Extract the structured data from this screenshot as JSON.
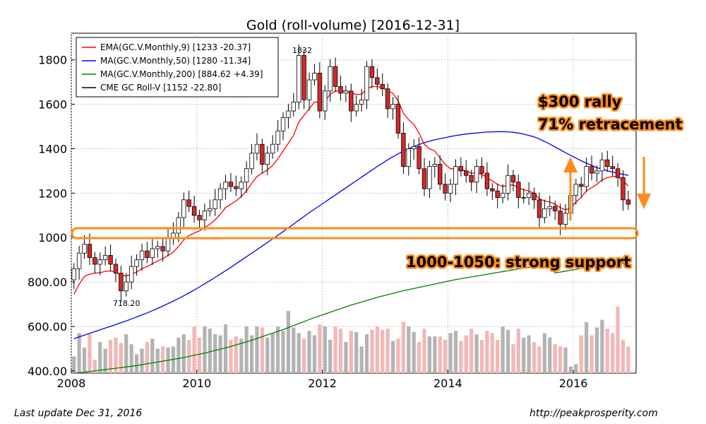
{
  "chart_data": {
    "type": "candlestick",
    "title": "Gold (roll-volume)  [2016-12-31]",
    "x_ticks": [
      "2008",
      "2010",
      "2012",
      "2014",
      "2016"
    ],
    "y_ticks": [
      "400.00",
      "600.00",
      "800.00",
      "1000",
      "1200",
      "1400",
      "1600",
      "1800"
    ],
    "x_range": [
      2008.0,
      2017.0
    ],
    "y_range": [
      390,
      1920
    ],
    "grid": true,
    "legend_position": "top-left",
    "legend": [
      {
        "label": "EMA(GC.V.Monthly,9) [1233 -20.37]",
        "color": "#ff0000"
      },
      {
        "label": "MA(GC.V.Monthly,50) [1280 -11.34]",
        "color": "#0000ff"
      },
      {
        "label": "MA(GC.V.Monthly,200) [884.62 +4.39]",
        "color": "#008000"
      },
      {
        "label": "CME GC Roll-V [1152 -22.80]",
        "color": "#000000"
      }
    ],
    "point_labels": {
      "high": "1832",
      "low": "718.20"
    },
    "price_closes": [
      860,
      930,
      970,
      910,
      880,
      900,
      920,
      880,
      840,
      760,
      800,
      870,
      900,
      940,
      910,
      950,
      960,
      940,
      1000,
      1020,
      1090,
      1170,
      1140,
      1100,
      1080,
      1120,
      1130,
      1170,
      1220,
      1250,
      1230,
      1220,
      1250,
      1310,
      1380,
      1420,
      1330,
      1380,
      1420,
      1480,
      1540,
      1570,
      1610,
      1820,
      1620,
      1710,
      1740,
      1570,
      1660,
      1770,
      1680,
      1650,
      1660,
      1570,
      1600,
      1620,
      1770,
      1720,
      1690,
      1670,
      1580,
      1600,
      1470,
      1320,
      1400,
      1410,
      1310,
      1220,
      1320,
      1330,
      1240,
      1200,
      1240,
      1320,
      1300,
      1280,
      1250,
      1320,
      1290,
      1220,
      1210,
      1180,
      1200,
      1280,
      1250,
      1180,
      1180,
      1200,
      1170,
      1090,
      1130,
      1140,
      1120,
      1060,
      1110,
      1190,
      1240,
      1230,
      1320,
      1290,
      1300,
      1350,
      1320,
      1310,
      1270,
      1170,
      1150
    ],
    "ema9": [
      745,
      790,
      825,
      835,
      840,
      842,
      848,
      850,
      845,
      830,
      828,
      835,
      845,
      860,
      870,
      882,
      895,
      905,
      920,
      935,
      960,
      990,
      1010,
      1020,
      1030,
      1045,
      1060,
      1080,
      1105,
      1135,
      1150,
      1165,
      1185,
      1210,
      1245,
      1275,
      1290,
      1305,
      1325,
      1355,
      1390,
      1425,
      1460,
      1520,
      1550,
      1580,
      1610,
      1610,
      1615,
      1645,
      1660,
      1660,
      1660,
      1650,
      1645,
      1645,
      1670,
      1680,
      1680,
      1675,
      1660,
      1650,
      1615,
      1560,
      1530,
      1510,
      1470,
      1420,
      1400,
      1390,
      1360,
      1330,
      1310,
      1310,
      1305,
      1300,
      1290,
      1290,
      1285,
      1270,
      1255,
      1240,
      1230,
      1235,
      1237,
      1225,
      1215,
      1210,
      1200,
      1175,
      1165,
      1160,
      1150,
      1135,
      1125,
      1135,
      1160,
      1180,
      1210,
      1225,
      1240,
      1260,
      1270,
      1275,
      1275,
      1255,
      1233
    ],
    "ma50": [
      545,
      553,
      561,
      569,
      577,
      585,
      593,
      601,
      609,
      617,
      625,
      634,
      643,
      652,
      661,
      671,
      681,
      692,
      703,
      714,
      726,
      738,
      751,
      764,
      778,
      792,
      806,
      821,
      836,
      851,
      866,
      882,
      898,
      914,
      930,
      946,
      962,
      978,
      994,
      1010,
      1027,
      1044,
      1061,
      1078,
      1095,
      1112,
      1128,
      1144,
      1160,
      1176,
      1192,
      1208,
      1224,
      1240,
      1256,
      1272,
      1288,
      1304,
      1320,
      1335,
      1350,
      1364,
      1377,
      1389,
      1400,
      1410,
      1419,
      1427,
      1434,
      1440,
      1445,
      1450,
      1455,
      1459,
      1463,
      1466,
      1469,
      1471,
      1473,
      1475,
      1476,
      1477,
      1477,
      1476,
      1474,
      1471,
      1466,
      1460,
      1453,
      1444,
      1433,
      1421,
      1408,
      1395,
      1382,
      1370,
      1358,
      1346,
      1335,
      1325,
      1315,
      1308,
      1301,
      1295,
      1290,
      1285,
      1280
    ],
    "ma200": [
      390,
      392,
      394,
      397,
      400,
      403,
      406,
      409,
      412,
      415,
      418,
      421,
      424,
      428,
      432,
      436,
      440,
      444,
      448,
      452,
      456,
      460,
      465,
      470,
      475,
      480,
      486,
      492,
      498,
      504,
      510,
      517,
      524,
      531,
      538,
      546,
      554,
      562,
      570,
      578,
      586,
      595,
      604,
      613,
      622,
      631,
      640,
      648,
      656,
      664,
      672,
      680,
      688,
      696,
      703,
      710,
      717,
      724,
      731,
      737,
      743,
      749,
      755,
      761,
      766,
      771,
      776,
      781,
      786,
      791,
      796,
      801,
      806,
      811,
      815,
      819,
      823,
      827,
      831,
      835,
      839,
      843,
      847,
      851,
      855,
      859,
      863,
      866,
      869,
      872,
      875,
      878,
      841,
      845,
      849,
      853,
      857,
      861,
      865,
      869,
      873,
      876,
      879,
      881,
      883,
      884,
      885
    ],
    "volume_tops": [
      465,
      570,
      505,
      565,
      450,
      530,
      500,
      540,
      550,
      525,
      565,
      520,
      475,
      500,
      530,
      545,
      500,
      510,
      505,
      510,
      550,
      565,
      540,
      600,
      550,
      600,
      590,
      565,
      560,
      610,
      540,
      555,
      545,
      600,
      560,
      600,
      595,
      550,
      570,
      600,
      580,
      670,
      595,
      570,
      545,
      580,
      560,
      610,
      600,
      540,
      600,
      590,
      530,
      580,
      575,
      510,
      565,
      585,
      600,
      585,
      590,
      535,
      545,
      620,
      600,
      575,
      530,
      590,
      555,
      555,
      555,
      540,
      570,
      580,
      535,
      560,
      590,
      565,
      540,
      580,
      570,
      540,
      600,
      585,
      520,
      590,
      550,
      560,
      530,
      510,
      570,
      550,
      520,
      510,
      505,
      420,
      430,
      560,
      620,
      560,
      595,
      630,
      590,
      570,
      690,
      540,
      510
    ]
  },
  "annotations": {
    "rally_line1": "$300 rally",
    "rally_line2": "71% retracement",
    "support": "1000-1050: strong support"
  },
  "footer": {
    "left": "Last update Dec 31, 2016",
    "right": "http://peakprosperity.com"
  },
  "colors": {
    "ema": "#ff0000",
    "ma50": "#0000ff",
    "ma200": "#008000",
    "candle_up": "#ffffff",
    "candle_down": "#d62728",
    "volume_up": "#b3b3b3",
    "volume_down": "#f4b6b6",
    "annotation_orange": "#ff8c1a"
  }
}
